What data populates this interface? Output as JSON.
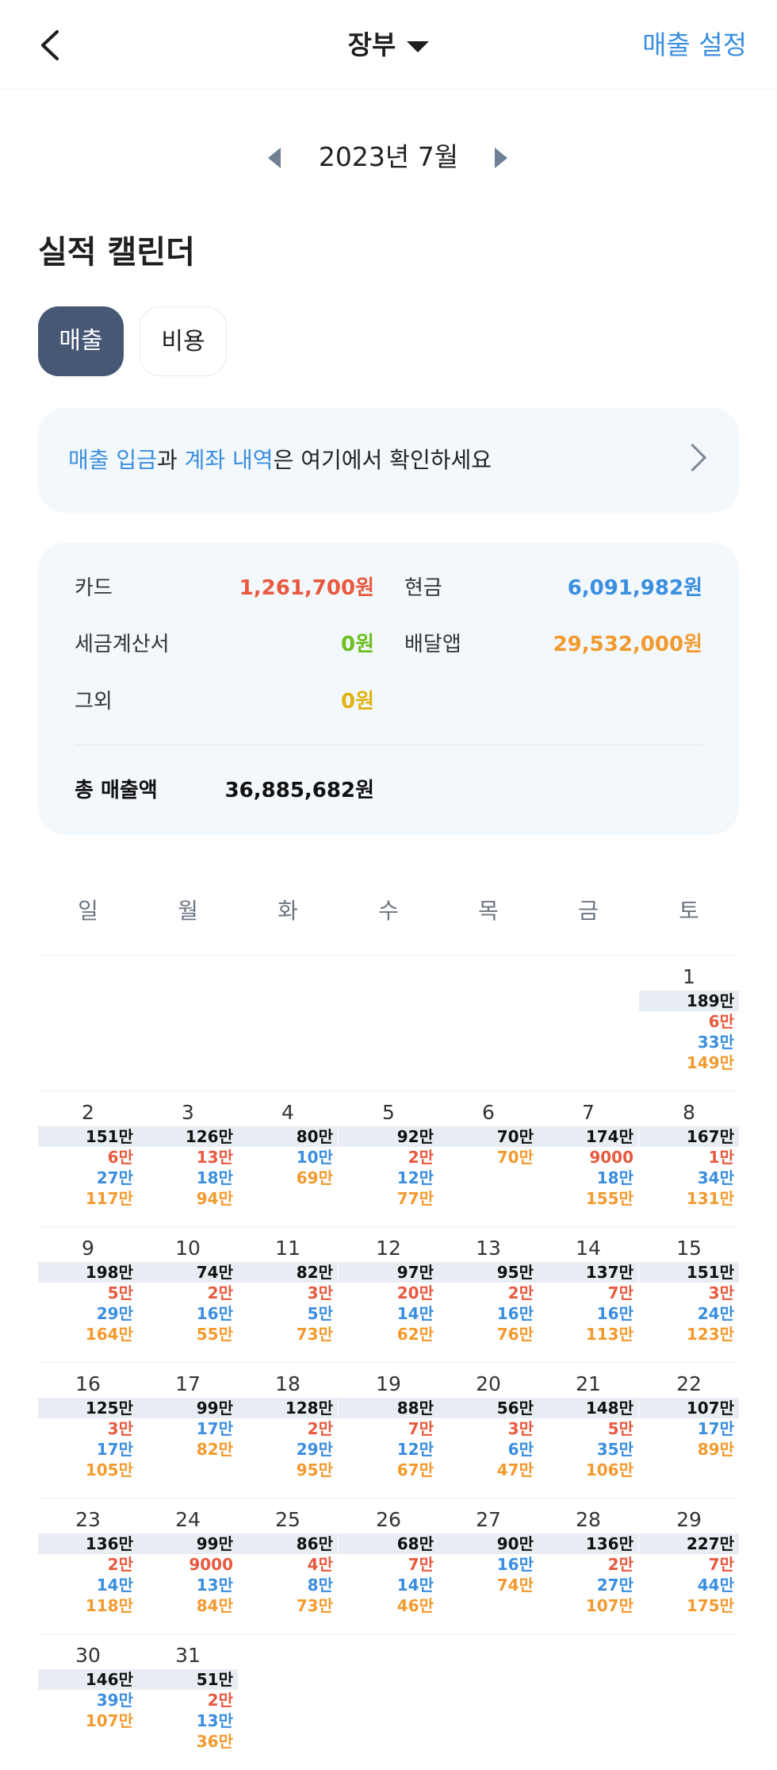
{
  "header": {
    "title": "장부",
    "sales_setting": "매출 설정"
  },
  "month_nav": {
    "label": "2023년 7월"
  },
  "section_title": "실적 캘린더",
  "tabs": {
    "sales": "매출",
    "cost": "비용"
  },
  "banner": {
    "part1": "매출 입금",
    "part2": "과 ",
    "part3": "계좌 내역",
    "part4": "은 여기에서 확인하세요"
  },
  "summary": {
    "card_label": "카드",
    "card_value": "1,261,700원",
    "cash_label": "현금",
    "cash_value": "6,091,982원",
    "tax_label": "세금계산서",
    "tax_value": "0원",
    "delivery_label": "배달앱",
    "delivery_value": "29,532,000원",
    "other_label": "그외",
    "other_value": "0원",
    "total_label": "총 매출액",
    "total_value": "36,885,682원"
  },
  "colors": {
    "card": "#e85a3f",
    "cash": "#3a8ee0",
    "tax": "#6cbf1f",
    "delivery": "#f29a2e",
    "other": "#e0b410",
    "accent": "#3a8ee0",
    "tab_active": "#475875"
  },
  "weekdays": [
    "일",
    "월",
    "화",
    "수",
    "목",
    "금",
    "토"
  ],
  "days": [
    {
      "d": "1",
      "total": "189만",
      "v": [
        [
          "6만",
          "red"
        ],
        [
          "33만",
          "blue"
        ],
        [
          "149만",
          "orange"
        ]
      ]
    },
    {
      "d": "2",
      "total": "151만",
      "v": [
        [
          "6만",
          "red"
        ],
        [
          "27만",
          "blue"
        ],
        [
          "117만",
          "orange"
        ]
      ]
    },
    {
      "d": "3",
      "total": "126만",
      "v": [
        [
          "13만",
          "red"
        ],
        [
          "18만",
          "blue"
        ],
        [
          "94만",
          "orange"
        ]
      ]
    },
    {
      "d": "4",
      "total": "80만",
      "v": [
        [
          "10만",
          "blue"
        ],
        [
          "69만",
          "orange"
        ]
      ]
    },
    {
      "d": "5",
      "total": "92만",
      "v": [
        [
          "2만",
          "red"
        ],
        [
          "12만",
          "blue"
        ],
        [
          "77만",
          "orange"
        ]
      ]
    },
    {
      "d": "6",
      "total": "70만",
      "v": [
        [
          "70만",
          "orange"
        ]
      ]
    },
    {
      "d": "7",
      "total": "174만",
      "v": [
        [
          "9000",
          "red"
        ],
        [
          "18만",
          "blue"
        ],
        [
          "155만",
          "orange"
        ]
      ]
    },
    {
      "d": "8",
      "total": "167만",
      "v": [
        [
          "1만",
          "red"
        ],
        [
          "34만",
          "blue"
        ],
        [
          "131만",
          "orange"
        ]
      ]
    },
    {
      "d": "9",
      "total": "198만",
      "v": [
        [
          "5만",
          "red"
        ],
        [
          "29만",
          "blue"
        ],
        [
          "164만",
          "orange"
        ]
      ]
    },
    {
      "d": "10",
      "total": "74만",
      "v": [
        [
          "2만",
          "red"
        ],
        [
          "16만",
          "blue"
        ],
        [
          "55만",
          "orange"
        ]
      ]
    },
    {
      "d": "11",
      "total": "82만",
      "v": [
        [
          "3만",
          "red"
        ],
        [
          "5만",
          "blue"
        ],
        [
          "73만",
          "orange"
        ]
      ]
    },
    {
      "d": "12",
      "total": "97만",
      "v": [
        [
          "20만",
          "red"
        ],
        [
          "14만",
          "blue"
        ],
        [
          "62만",
          "orange"
        ]
      ]
    },
    {
      "d": "13",
      "total": "95만",
      "v": [
        [
          "2만",
          "red"
        ],
        [
          "16만",
          "blue"
        ],
        [
          "76만",
          "orange"
        ]
      ]
    },
    {
      "d": "14",
      "total": "137만",
      "v": [
        [
          "7만",
          "red"
        ],
        [
          "16만",
          "blue"
        ],
        [
          "113만",
          "orange"
        ]
      ]
    },
    {
      "d": "15",
      "total": "151만",
      "v": [
        [
          "3만",
          "red"
        ],
        [
          "24만",
          "blue"
        ],
        [
          "123만",
          "orange"
        ]
      ]
    },
    {
      "d": "16",
      "total": "125만",
      "v": [
        [
          "3만",
          "red"
        ],
        [
          "17만",
          "blue"
        ],
        [
          "105만",
          "orange"
        ]
      ]
    },
    {
      "d": "17",
      "total": "99만",
      "v": [
        [
          "17만",
          "blue"
        ],
        [
          "82만",
          "orange"
        ]
      ]
    },
    {
      "d": "18",
      "total": "128만",
      "v": [
        [
          "2만",
          "red"
        ],
        [
          "29만",
          "blue"
        ],
        [
          "95만",
          "orange"
        ]
      ]
    },
    {
      "d": "19",
      "total": "88만",
      "v": [
        [
          "7만",
          "red"
        ],
        [
          "12만",
          "blue"
        ],
        [
          "67만",
          "orange"
        ]
      ]
    },
    {
      "d": "20",
      "total": "56만",
      "v": [
        [
          "3만",
          "red"
        ],
        [
          "6만",
          "blue"
        ],
        [
          "47만",
          "orange"
        ]
      ]
    },
    {
      "d": "21",
      "total": "148만",
      "v": [
        [
          "5만",
          "red"
        ],
        [
          "35만",
          "blue"
        ],
        [
          "106만",
          "orange"
        ]
      ]
    },
    {
      "d": "22",
      "total": "107만",
      "v": [
        [
          "17만",
          "blue"
        ],
        [
          "89만",
          "orange"
        ]
      ]
    },
    {
      "d": "23",
      "total": "136만",
      "v": [
        [
          "2만",
          "red"
        ],
        [
          "14만",
          "blue"
        ],
        [
          "118만",
          "orange"
        ]
      ]
    },
    {
      "d": "24",
      "total": "99만",
      "v": [
        [
          "9000",
          "red"
        ],
        [
          "13만",
          "blue"
        ],
        [
          "84만",
          "orange"
        ]
      ]
    },
    {
      "d": "25",
      "total": "86만",
      "v": [
        [
          "4만",
          "red"
        ],
        [
          "8만",
          "blue"
        ],
        [
          "73만",
          "orange"
        ]
      ]
    },
    {
      "d": "26",
      "total": "68만",
      "v": [
        [
          "7만",
          "red"
        ],
        [
          "14만",
          "blue"
        ],
        [
          "46만",
          "orange"
        ]
      ]
    },
    {
      "d": "27",
      "total": "90만",
      "v": [
        [
          "16만",
          "blue"
        ],
        [
          "74만",
          "orange"
        ]
      ]
    },
    {
      "d": "28",
      "total": "136만",
      "v": [
        [
          "2만",
          "red"
        ],
        [
          "27만",
          "blue"
        ],
        [
          "107만",
          "orange"
        ]
      ]
    },
    {
      "d": "29",
      "total": "227만",
      "v": [
        [
          "7만",
          "red"
        ],
        [
          "44만",
          "blue"
        ],
        [
          "175만",
          "orange"
        ]
      ]
    },
    {
      "d": "30",
      "total": "146만",
      "v": [
        [
          "39만",
          "blue"
        ],
        [
          "107만",
          "orange"
        ]
      ]
    },
    {
      "d": "31",
      "total": "51만",
      "v": [
        [
          "2만",
          "red"
        ],
        [
          "13만",
          "blue"
        ],
        [
          "36만",
          "orange"
        ]
      ]
    }
  ]
}
